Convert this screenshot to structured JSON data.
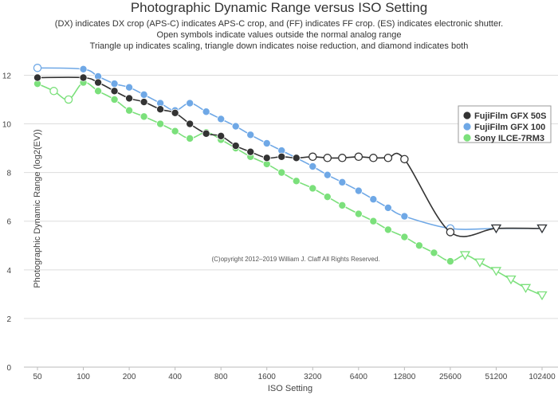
{
  "chart_data": {
    "type": "line",
    "title": "Photographic Dynamic Range versus ISO Setting",
    "subtitle": [
      "(DX) indicates DX crop (APS-C) indicates APS-C crop, and (FF) indicates FF crop. (ES) indicates electronic shutter.",
      "Open symbols indicate values outside the normal analog range",
      "Triangle up indicates scaling, triangle down indicates noise reduction, and diamond indicates both"
    ],
    "xlabel": "ISO Setting",
    "ylabel": "Photographic Dynamic Range (log2(EV))",
    "credit": "(C)opyright 2012–2019 William J. Claff All Rights Reserved.",
    "x_scale": "log2",
    "x_ticks": [
      "50",
      "100",
      "200",
      "400",
      "800",
      "1600",
      "3200",
      "6400",
      "12800",
      "25600",
      "51200",
      "102400"
    ],
    "y_ticks": [
      "0",
      "2",
      "4",
      "6",
      "8",
      "10",
      "12"
    ],
    "ylim": [
      0,
      12.8
    ],
    "grid": true,
    "legend_position": "right",
    "series": [
      {
        "name": "FujiFilm GFX 50S",
        "color": "#333333",
        "points": [
          {
            "iso": 50,
            "dr": 11.9,
            "marker": "circle",
            "open": false
          },
          {
            "iso": 100,
            "dr": 11.9,
            "marker": "circle",
            "open": false
          },
          {
            "iso": 125,
            "dr": 11.7,
            "marker": "circle",
            "open": false
          },
          {
            "iso": 160,
            "dr": 11.35,
            "marker": "circle",
            "open": false
          },
          {
            "iso": 200,
            "dr": 11.05,
            "marker": "circle",
            "open": false
          },
          {
            "iso": 250,
            "dr": 10.9,
            "marker": "circle",
            "open": false
          },
          {
            "iso": 320,
            "dr": 10.6,
            "marker": "circle",
            "open": false
          },
          {
            "iso": 400,
            "dr": 10.45,
            "marker": "circle",
            "open": false
          },
          {
            "iso": 500,
            "dr": 10.0,
            "marker": "circle",
            "open": false
          },
          {
            "iso": 640,
            "dr": 9.6,
            "marker": "circle",
            "open": false
          },
          {
            "iso": 800,
            "dr": 9.5,
            "marker": "circle",
            "open": false
          },
          {
            "iso": 1000,
            "dr": 9.1,
            "marker": "circle",
            "open": false
          },
          {
            "iso": 1250,
            "dr": 8.85,
            "marker": "circle",
            "open": false
          },
          {
            "iso": 1600,
            "dr": 8.6,
            "marker": "circle",
            "open": false
          },
          {
            "iso": 2000,
            "dr": 8.65,
            "marker": "circle",
            "open": false
          },
          {
            "iso": 2500,
            "dr": 8.6,
            "marker": "circle",
            "open": false
          },
          {
            "iso": 3200,
            "dr": 8.65,
            "marker": "circle",
            "open": true
          },
          {
            "iso": 4000,
            "dr": 8.6,
            "marker": "circle",
            "open": true
          },
          {
            "iso": 5000,
            "dr": 8.6,
            "marker": "circle",
            "open": true
          },
          {
            "iso": 6400,
            "dr": 8.65,
            "marker": "circle",
            "open": true
          },
          {
            "iso": 8000,
            "dr": 8.6,
            "marker": "circle",
            "open": true
          },
          {
            "iso": 10000,
            "dr": 8.6,
            "marker": "circle",
            "open": true
          },
          {
            "iso": 12800,
            "dr": 8.55,
            "marker": "circle",
            "open": true
          },
          {
            "iso": 25600,
            "dr": 5.55,
            "marker": "circle",
            "open": true
          },
          {
            "iso": 51200,
            "dr": 5.7,
            "marker": "triangle-down",
            "open": true
          },
          {
            "iso": 102400,
            "dr": 5.7,
            "marker": "triangle-down",
            "open": true
          }
        ]
      },
      {
        "name": "FujiFilm GFX 100",
        "color": "#6fa8e6",
        "points": [
          {
            "iso": 50,
            "dr": 12.3,
            "marker": "circle",
            "open": true
          },
          {
            "iso": 100,
            "dr": 12.25,
            "marker": "circle",
            "open": false
          },
          {
            "iso": 125,
            "dr": 11.95,
            "marker": "circle",
            "open": false
          },
          {
            "iso": 160,
            "dr": 11.65,
            "marker": "circle",
            "open": false
          },
          {
            "iso": 200,
            "dr": 11.5,
            "marker": "circle",
            "open": false
          },
          {
            "iso": 250,
            "dr": 11.2,
            "marker": "circle",
            "open": false
          },
          {
            "iso": 320,
            "dr": 10.85,
            "marker": "circle",
            "open": false
          },
          {
            "iso": 400,
            "dr": 10.55,
            "marker": "circle",
            "open": false
          },
          {
            "iso": 500,
            "dr": 10.85,
            "marker": "circle",
            "open": false
          },
          {
            "iso": 640,
            "dr": 10.5,
            "marker": "circle",
            "open": false
          },
          {
            "iso": 800,
            "dr": 10.2,
            "marker": "circle",
            "open": false
          },
          {
            "iso": 1000,
            "dr": 9.9,
            "marker": "circle",
            "open": false
          },
          {
            "iso": 1250,
            "dr": 9.55,
            "marker": "circle",
            "open": false
          },
          {
            "iso": 1600,
            "dr": 9.2,
            "marker": "circle",
            "open": false
          },
          {
            "iso": 2000,
            "dr": 8.9,
            "marker": "circle",
            "open": false
          },
          {
            "iso": 2500,
            "dr": 8.6,
            "marker": "circle",
            "open": false
          },
          {
            "iso": 3200,
            "dr": 8.25,
            "marker": "circle",
            "open": false
          },
          {
            "iso": 4000,
            "dr": 7.9,
            "marker": "circle",
            "open": false
          },
          {
            "iso": 5000,
            "dr": 7.6,
            "marker": "circle",
            "open": false
          },
          {
            "iso": 6400,
            "dr": 7.25,
            "marker": "circle",
            "open": false
          },
          {
            "iso": 8000,
            "dr": 6.9,
            "marker": "circle",
            "open": false
          },
          {
            "iso": 10000,
            "dr": 6.55,
            "marker": "circle",
            "open": false
          },
          {
            "iso": 12800,
            "dr": 6.2,
            "marker": "circle",
            "open": false
          },
          {
            "iso": 25600,
            "dr": 5.7,
            "marker": "circle",
            "open": true
          },
          {
            "iso": 51200,
            "dr": 5.7,
            "marker": "triangle-down",
            "open": true
          },
          {
            "iso": 102400,
            "dr": 5.7,
            "marker": "triangle-down",
            "open": true
          }
        ]
      },
      {
        "name": "Sony ILCE-7RM3",
        "color": "#7be07b",
        "points": [
          {
            "iso": 50,
            "dr": 11.65,
            "marker": "circle",
            "open": false
          },
          {
            "iso": 64,
            "dr": 11.35,
            "marker": "circle",
            "open": true
          },
          {
            "iso": 80,
            "dr": 11.0,
            "marker": "circle",
            "open": true
          },
          {
            "iso": 100,
            "dr": 11.7,
            "marker": "circle",
            "open": false
          },
          {
            "iso": 125,
            "dr": 11.35,
            "marker": "circle",
            "open": false
          },
          {
            "iso": 160,
            "dr": 11.0,
            "marker": "circle",
            "open": false
          },
          {
            "iso": 200,
            "dr": 10.55,
            "marker": "circle",
            "open": false
          },
          {
            "iso": 250,
            "dr": 10.3,
            "marker": "circle",
            "open": false
          },
          {
            "iso": 320,
            "dr": 10.0,
            "marker": "circle",
            "open": false
          },
          {
            "iso": 400,
            "dr": 9.7,
            "marker": "circle",
            "open": false
          },
          {
            "iso": 500,
            "dr": 9.4,
            "marker": "circle",
            "open": false
          },
          {
            "iso": 640,
            "dr": 9.65,
            "marker": "circle",
            "open": false
          },
          {
            "iso": 800,
            "dr": 9.35,
            "marker": "circle",
            "open": false
          },
          {
            "iso": 1000,
            "dr": 9.0,
            "marker": "circle",
            "open": false
          },
          {
            "iso": 1250,
            "dr": 8.65,
            "marker": "circle",
            "open": false
          },
          {
            "iso": 1600,
            "dr": 8.35,
            "marker": "circle",
            "open": false
          },
          {
            "iso": 2000,
            "dr": 8.0,
            "marker": "circle",
            "open": false
          },
          {
            "iso": 2500,
            "dr": 7.65,
            "marker": "circle",
            "open": false
          },
          {
            "iso": 3200,
            "dr": 7.35,
            "marker": "circle",
            "open": false
          },
          {
            "iso": 4000,
            "dr": 7.0,
            "marker": "circle",
            "open": false
          },
          {
            "iso": 5000,
            "dr": 6.65,
            "marker": "circle",
            "open": false
          },
          {
            "iso": 6400,
            "dr": 6.3,
            "marker": "circle",
            "open": false
          },
          {
            "iso": 8000,
            "dr": 6.0,
            "marker": "circle",
            "open": false
          },
          {
            "iso": 10000,
            "dr": 5.65,
            "marker": "circle",
            "open": false
          },
          {
            "iso": 12800,
            "dr": 5.35,
            "marker": "circle",
            "open": false
          },
          {
            "iso": 16000,
            "dr": 5.0,
            "marker": "circle",
            "open": false
          },
          {
            "iso": 20000,
            "dr": 4.7,
            "marker": "circle",
            "open": false
          },
          {
            "iso": 25600,
            "dr": 4.35,
            "marker": "circle",
            "open": false
          },
          {
            "iso": 32000,
            "dr": 4.6,
            "marker": "triangle-down",
            "open": true
          },
          {
            "iso": 40000,
            "dr": 4.3,
            "marker": "triangle-down",
            "open": true
          },
          {
            "iso": 51200,
            "dr": 3.95,
            "marker": "triangle-down",
            "open": true
          },
          {
            "iso": 64000,
            "dr": 3.6,
            "marker": "triangle-down",
            "open": true
          },
          {
            "iso": 80000,
            "dr": 3.25,
            "marker": "triangle-down",
            "open": true
          },
          {
            "iso": 102400,
            "dr": 2.95,
            "marker": "triangle-down",
            "open": true
          }
        ]
      }
    ]
  }
}
